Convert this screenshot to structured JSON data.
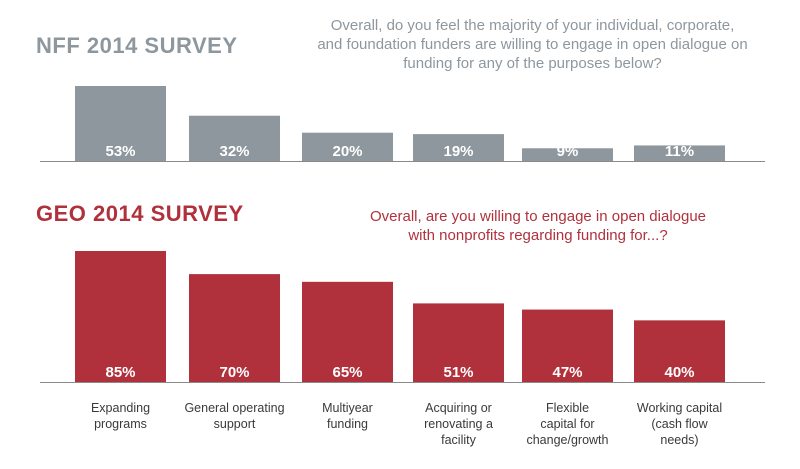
{
  "chart_data": [
    {
      "type": "bar",
      "title": "NFF 2014 SURVEY",
      "question_lines": [
        "Overall, do you feel the majority of your individual, corporate,",
        "and foundation funders are willing to engage in open dialogue on",
        "funding for any of the purposes  below?"
      ],
      "categories": [
        "Expanding programs",
        "General operating support",
        "Multiyear funding",
        "Acquiring or renovating a facility",
        "Flexible capital for change/growth",
        "Working capital (cash flow needs)"
      ],
      "values": [
        53,
        32,
        20,
        19,
        9,
        11
      ],
      "value_labels": [
        "53%",
        "32%",
        "20%",
        "19%",
        "9%",
        "11%"
      ],
      "ylim": [
        0,
        60
      ],
      "color": "#8e979e"
    },
    {
      "type": "bar",
      "title": "GEO 2014 SURVEY",
      "question_lines": [
        "Overall, are you willing to engage in open dialogue",
        "with nonprofits regarding funding for...?"
      ],
      "categories": [
        "Expanding programs",
        "General operating support",
        "Multiyear funding",
        "Acquiring or renovating a facility",
        "Flexible capital for change/growth",
        "Working capital (cash flow needs)"
      ],
      "values": [
        85,
        70,
        65,
        51,
        47,
        40
      ],
      "value_labels": [
        "85%",
        "70%",
        "65%",
        "51%",
        "47%",
        "40%"
      ],
      "ylim": [
        0,
        88
      ],
      "color": "#b0313c"
    }
  ],
  "category_label_lines": [
    [
      "Expanding",
      "programs"
    ],
    [
      "General operating",
      "support"
    ],
    [
      "Multiyear",
      "funding"
    ],
    [
      "Acquiring or",
      "renovating a",
      "facility"
    ],
    [
      "Flexible",
      "capital for",
      "change/growth"
    ],
    [
      "Working capital",
      "(cash flow",
      "needs)"
    ]
  ]
}
